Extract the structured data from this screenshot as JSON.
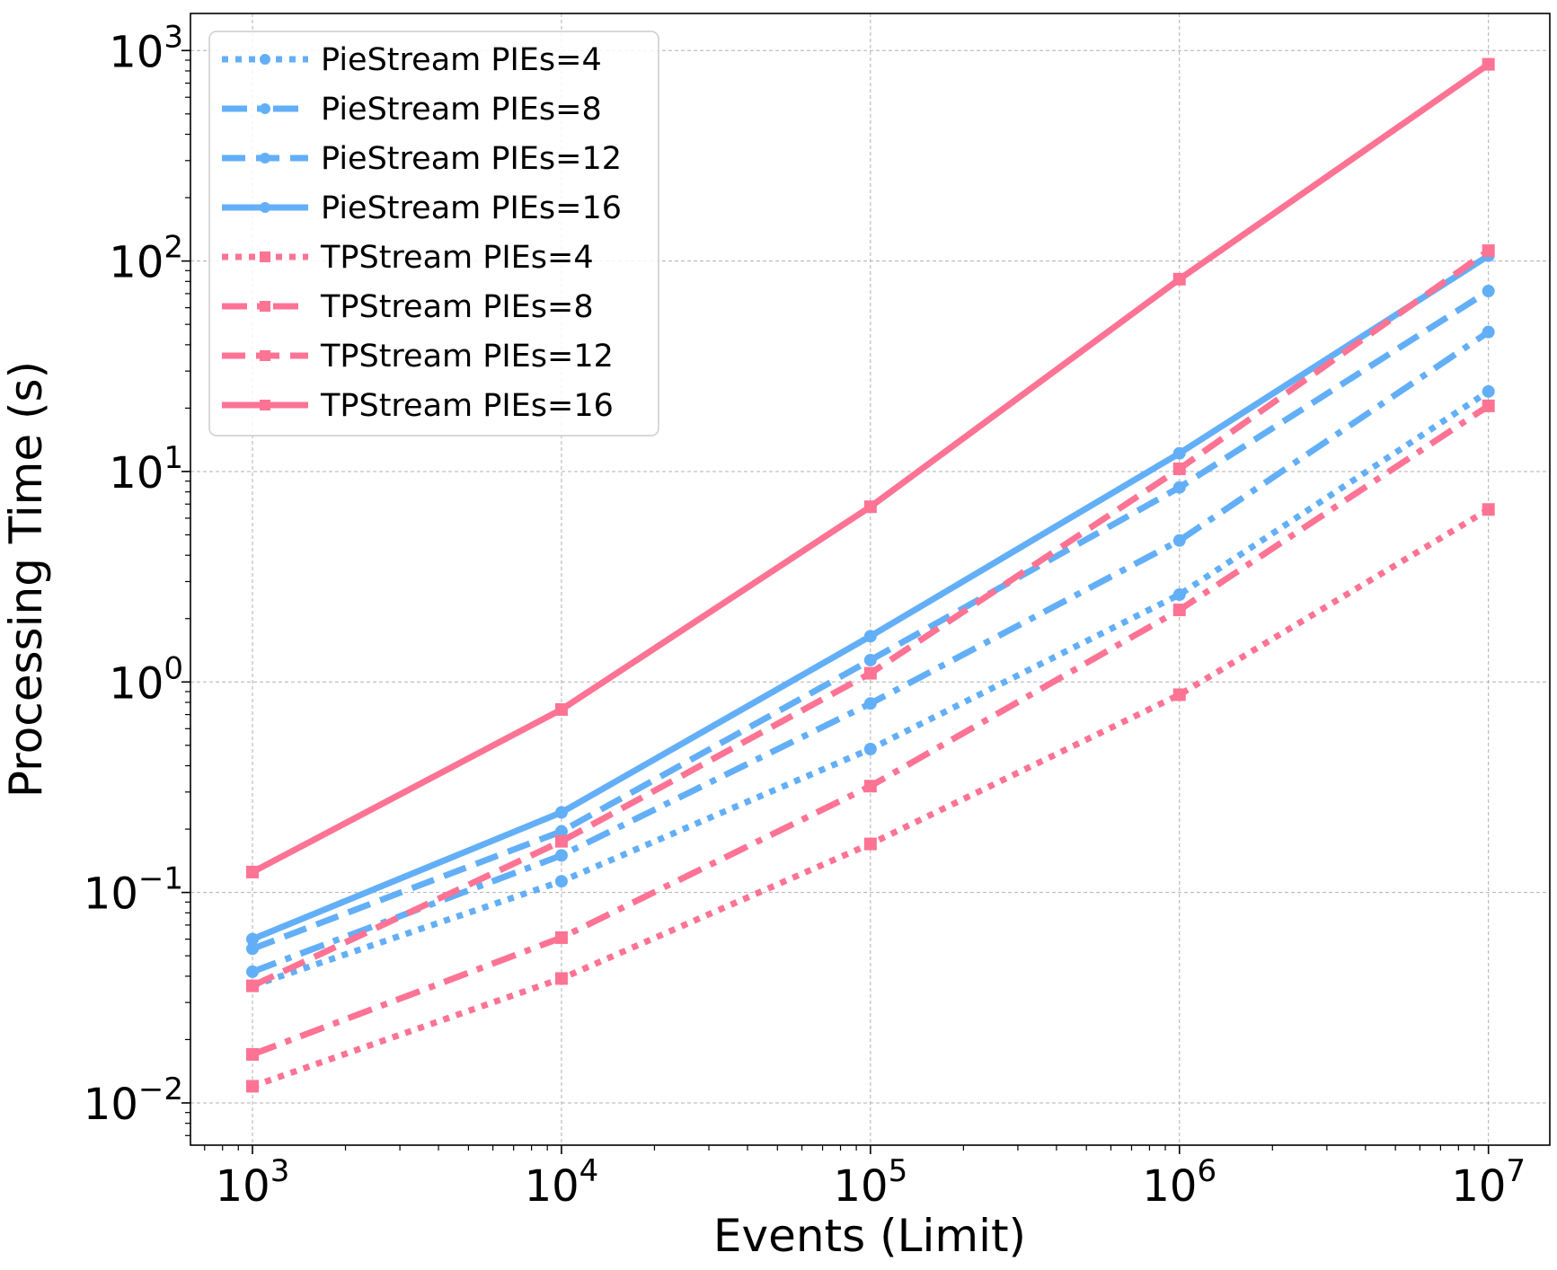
{
  "chart_data": {
    "type": "line",
    "title": "",
    "xlabel": "Events (Limit)",
    "ylabel": "Processing Time (s)",
    "xscale": "log",
    "yscale": "log",
    "xlim": [
      630,
      15800000
    ],
    "ylim": [
      0.0063,
      1500
    ],
    "grid": true,
    "legend_position": "upper-left",
    "x": [
      1000,
      10000,
      100000,
      1000000,
      10000000
    ],
    "x_ticks": [
      {
        "value": 1000,
        "base": "10",
        "exp": "3"
      },
      {
        "value": 10000,
        "base": "10",
        "exp": "4"
      },
      {
        "value": 100000,
        "base": "10",
        "exp": "5"
      },
      {
        "value": 1000000,
        "base": "10",
        "exp": "6"
      },
      {
        "value": 10000000,
        "base": "10",
        "exp": "7"
      }
    ],
    "y_ticks": [
      {
        "value": 0.01,
        "base": "10",
        "exp": "−2"
      },
      {
        "value": 0.1,
        "base": "10",
        "exp": "−1"
      },
      {
        "value": 1,
        "base": "10",
        "exp": "0"
      },
      {
        "value": 10,
        "base": "10",
        "exp": "1"
      },
      {
        "value": 100,
        "base": "10",
        "exp": "2"
      },
      {
        "value": 1000,
        "base": "10",
        "exp": "3"
      }
    ],
    "series": [
      {
        "name": "PieStream PIEs=4",
        "color": "#63aff7",
        "dash": "dotted",
        "marker": "circle",
        "values": [
          0.036,
          0.113,
          0.48,
          2.6,
          24
        ]
      },
      {
        "name": "PieStream PIEs=8",
        "color": "#63aff7",
        "dash": "dashdot",
        "marker": "circle",
        "values": [
          0.042,
          0.15,
          0.79,
          4.7,
          46
        ]
      },
      {
        "name": "PieStream PIEs=12",
        "color": "#63aff7",
        "dash": "dashed",
        "marker": "circle",
        "values": [
          0.054,
          0.195,
          1.27,
          8.4,
          72
        ]
      },
      {
        "name": "PieStream PIEs=16",
        "color": "#63aff7",
        "dash": "solid",
        "marker": "circle",
        "values": [
          0.06,
          0.24,
          1.65,
          12.2,
          106
        ]
      },
      {
        "name": "TPStream PIEs=4",
        "color": "#fd7394",
        "dash": "dotted",
        "marker": "square",
        "values": [
          0.012,
          0.039,
          0.17,
          0.87,
          6.6
        ]
      },
      {
        "name": "TPStream PIEs=8",
        "color": "#fd7394",
        "dash": "dashdot",
        "marker": "square",
        "values": [
          0.017,
          0.061,
          0.32,
          2.2,
          20.5
        ]
      },
      {
        "name": "TPStream PIEs=12",
        "color": "#fd7394",
        "dash": "dashed",
        "marker": "square",
        "values": [
          0.036,
          0.175,
          1.1,
          10.3,
          112
        ]
      },
      {
        "name": "TPStream PIEs=16",
        "color": "#fd7394",
        "dash": "solid",
        "marker": "square",
        "values": [
          0.125,
          0.74,
          6.8,
          82,
          860
        ]
      }
    ]
  }
}
